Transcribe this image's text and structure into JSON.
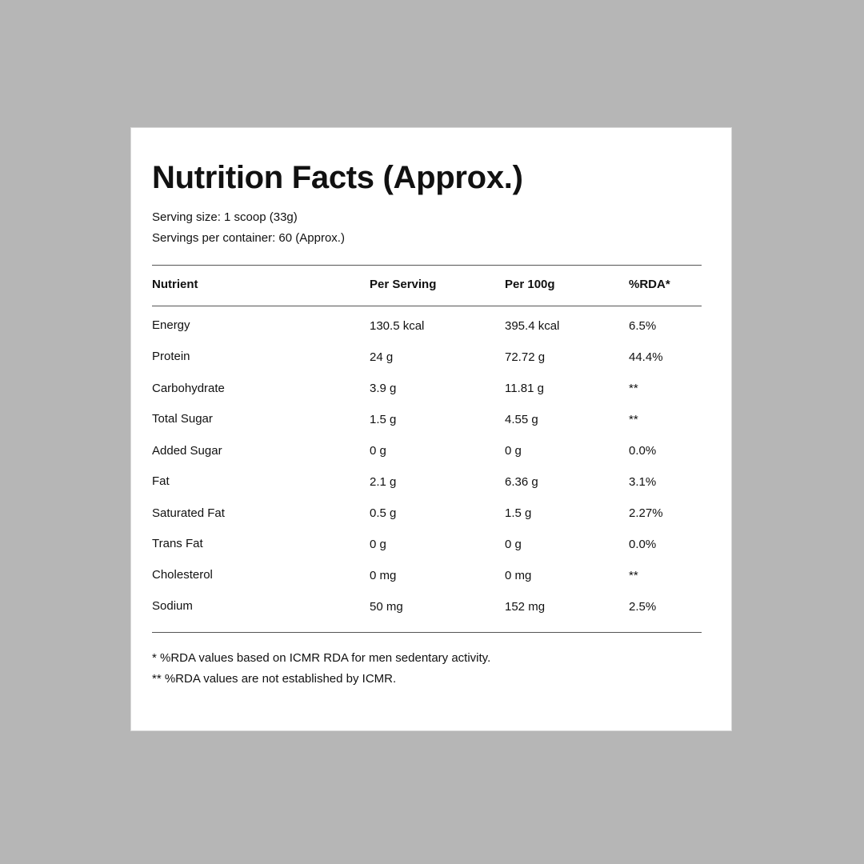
{
  "panel": {
    "title": "Nutrition Facts (Approx.)",
    "serving_size": "Serving size: 1 scoop (33g)",
    "servings_per_container": "Servings per container: 60 (Approx.)"
  },
  "table": {
    "headers": {
      "nutrient": "Nutrient",
      "per_serving": "Per Serving",
      "per_100g": "Per 100g",
      "rda": "%RDA*"
    },
    "rows": [
      {
        "nutrient": "Energy",
        "per_serving": "130.5 kcal",
        "per_100g": "395.4 kcal",
        "rda": "6.5%"
      },
      {
        "nutrient": "Protein",
        "per_serving": "24 g",
        "per_100g": "72.72 g",
        "rda": "44.4%"
      },
      {
        "nutrient": "Carbohydrate",
        "per_serving": "3.9 g",
        "per_100g": "11.81 g",
        "rda": "**"
      },
      {
        "nutrient": "Total Sugar",
        "per_serving": "1.5 g",
        "per_100g": "4.55 g",
        "rda": "**"
      },
      {
        "nutrient": "Added Sugar",
        "per_serving": "0 g",
        "per_100g": "0 g",
        "rda": "0.0%"
      },
      {
        "nutrient": "Fat",
        "per_serving": "2.1 g",
        "per_100g": "6.36 g",
        "rda": "3.1%"
      },
      {
        "nutrient": "Saturated Fat",
        "per_serving": "0.5 g",
        "per_100g": "1.5 g",
        "rda": "2.27%"
      },
      {
        "nutrient": "Trans Fat",
        "per_serving": "0 g",
        "per_100g": "0 g",
        "rda": "0.0%"
      },
      {
        "nutrient": "Cholesterol",
        "per_serving": "0 mg",
        "per_100g": "0 mg",
        "rda": "**"
      },
      {
        "nutrient": "Sodium",
        "per_serving": "50 mg",
        "per_100g": "152 mg",
        "rda": "2.5%"
      }
    ]
  },
  "footnotes": [
    "* %RDA values based on ICMR RDA for men sedentary activity.",
    "** %RDA values are not established by ICMR."
  ]
}
